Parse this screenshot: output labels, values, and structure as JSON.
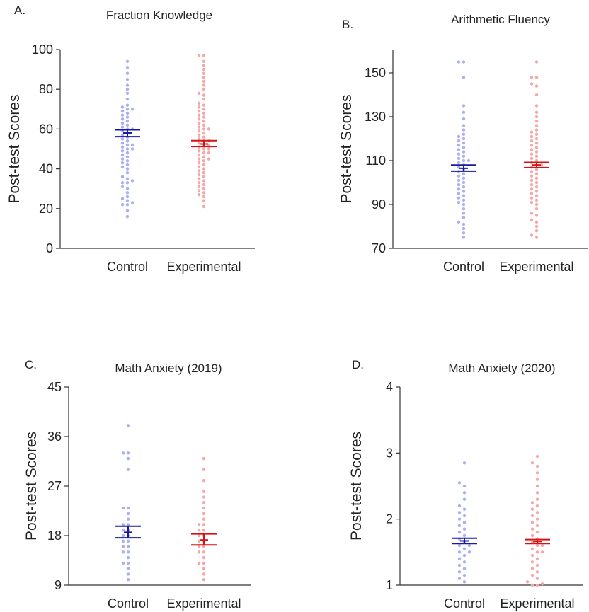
{
  "colors": {
    "control_dot": "#aab0f0",
    "experimental_dot": "#f4a8a8",
    "control_mean": "#1a1aa0",
    "experimental_mean": "#d41414"
  },
  "chart_data": [
    {
      "panel": "A.",
      "type": "scatter",
      "title": "Fraction Knowledge",
      "ylabel": "Post-test Scores",
      "ylim": [
        0,
        100
      ],
      "yticks": [
        0,
        20,
        40,
        60,
        80,
        100
      ],
      "categories": [
        "Control",
        "Experimental"
      ],
      "series": [
        {
          "values": [
            16,
            19,
            22,
            22,
            23,
            24,
            25,
            26,
            28,
            30,
            31,
            33,
            33,
            34,
            35,
            36,
            38,
            40,
            41,
            42,
            43,
            44,
            45,
            46,
            47,
            48,
            49,
            50,
            50,
            51,
            52,
            52,
            53,
            54,
            55,
            56,
            57,
            58,
            59,
            60,
            60,
            61,
            62,
            63,
            64,
            65,
            66,
            67,
            68,
            69,
            70,
            70,
            71,
            72,
            75,
            78,
            80,
            82,
            85,
            88,
            91,
            94
          ],
          "mean": 58,
          "sem_low": 56.2,
          "sem_high": 59.6
        },
        {
          "values": [
            21,
            24,
            26,
            27,
            28,
            29,
            30,
            31,
            32,
            33,
            34,
            35,
            36,
            37,
            38,
            39,
            40,
            41,
            42,
            43,
            44,
            45,
            45,
            46,
            47,
            48,
            48,
            49,
            50,
            50,
            51,
            52,
            52,
            53,
            54,
            54,
            55,
            56,
            57,
            58,
            59,
            60,
            60,
            61,
            62,
            63,
            64,
            65,
            66,
            67,
            68,
            69,
            70,
            71,
            72,
            73,
            75,
            77,
            78,
            80,
            82,
            84,
            86,
            88,
            90,
            92,
            94,
            97,
            97
          ],
          "mean": 52.5,
          "sem_low": 51.2,
          "sem_high": 54.2
        }
      ]
    },
    {
      "panel": "B.",
      "type": "scatter",
      "title": "Arithmetic Fluency",
      "ylabel": "Post-test Scores",
      "ylim": [
        70,
        160
      ],
      "yticks": [
        70,
        90,
        110,
        130,
        150
      ],
      "categories": [
        "Control",
        "Experimental"
      ],
      "series": [
        {
          "values": [
            75,
            77,
            79,
            81,
            82,
            84,
            86,
            88,
            90,
            91,
            92,
            93,
            94,
            95,
            96,
            97,
            98,
            99,
            100,
            101,
            102,
            103,
            104,
            105,
            106,
            107,
            108,
            109,
            110,
            110,
            111,
            112,
            113,
            114,
            115,
            116,
            117,
            118,
            119,
            120,
            121,
            122,
            124,
            126,
            129,
            132,
            135,
            148,
            155,
            155
          ],
          "mean": 106.5,
          "sem_low": 105.2,
          "sem_high": 108.0
        },
        {
          "values": [
            75,
            76,
            78,
            80,
            82,
            83,
            85,
            86,
            88,
            90,
            91,
            92,
            93,
            94,
            95,
            96,
            97,
            98,
            99,
            100,
            101,
            102,
            103,
            104,
            105,
            106,
            107,
            108,
            108,
            109,
            110,
            111,
            112,
            113,
            114,
            115,
            116,
            117,
            118,
            119,
            120,
            121,
            122,
            123,
            124,
            126,
            128,
            130,
            132,
            135,
            140,
            144,
            145,
            148,
            148,
            155
          ],
          "mean": 108,
          "sem_low": 106.8,
          "sem_high": 109.2
        }
      ]
    },
    {
      "panel": "C.",
      "type": "scatter",
      "title": "Math Anxiety (2019)",
      "ylabel": "Post-test Scores",
      "ylim": [
        9,
        45
      ],
      "yticks": [
        9,
        18,
        27,
        36,
        45
      ],
      "categories": [
        "Control",
        "Experimental"
      ],
      "series": [
        {
          "values": [
            10,
            11,
            12,
            13,
            13,
            14,
            15,
            15,
            16,
            16,
            17,
            17,
            18,
            18,
            19,
            19,
            20,
            20,
            21,
            22,
            23,
            23,
            30,
            32,
            33,
            33,
            38
          ],
          "mean": 18.6,
          "sem_low": 17.6,
          "sem_high": 19.7
        },
        {
          "values": [
            10,
            11,
            12,
            13,
            13,
            14,
            15,
            15,
            16,
            16,
            17,
            17,
            18,
            18,
            19,
            19,
            20,
            20,
            21,
            22,
            23,
            24,
            25,
            26,
            28,
            30,
            32
          ],
          "mean": 17.2,
          "sem_low": 16.3,
          "sem_high": 18.3
        }
      ]
    },
    {
      "panel": "D.",
      "type": "scatter",
      "title": "Math Anxiety (2020)",
      "ylabel": "Post-test Scores",
      "ylim": [
        1,
        4
      ],
      "yticks": [
        1,
        2,
        3,
        4
      ],
      "categories": [
        "Control",
        "Experimental"
      ],
      "series": [
        {
          "values": [
            1.05,
            1.1,
            1.15,
            1.2,
            1.25,
            1.3,
            1.35,
            1.4,
            1.45,
            1.5,
            1.5,
            1.55,
            1.6,
            1.6,
            1.65,
            1.7,
            1.75,
            1.8,
            1.85,
            1.9,
            1.95,
            2.0,
            2.05,
            2.1,
            2.15,
            2.2,
            2.3,
            2.4,
            2.5,
            2.55,
            2.85
          ],
          "mean": 1.67,
          "sem_low": 1.63,
          "sem_high": 1.71
        },
        {
          "values": [
            1.0,
            1.0,
            1.02,
            1.05,
            1.1,
            1.15,
            1.2,
            1.25,
            1.3,
            1.35,
            1.4,
            1.45,
            1.5,
            1.5,
            1.55,
            1.6,
            1.6,
            1.65,
            1.7,
            1.75,
            1.8,
            1.85,
            1.9,
            1.95,
            2.0,
            2.05,
            2.1,
            2.15,
            2.2,
            2.25,
            2.3,
            2.4,
            2.5,
            2.6,
            2.7,
            2.8,
            2.85,
            2.95
          ],
          "mean": 1.66,
          "sem_low": 1.63,
          "sem_high": 1.69
        }
      ]
    }
  ]
}
